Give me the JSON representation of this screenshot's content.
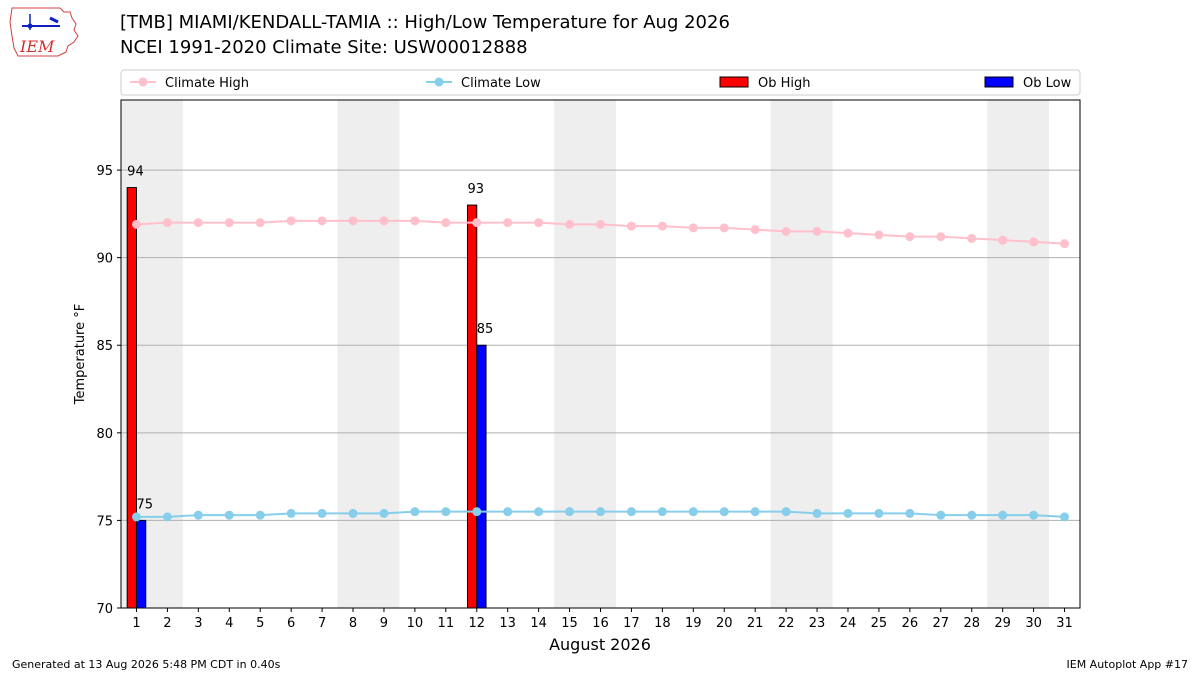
{
  "logo_text": "IEM",
  "title_line1": "[TMB] MIAMI/KENDALL-TAMIA :: High/Low Temperature for Aug 2026",
  "title_line2": "NCEI 1991-2020 Climate Site: USW00012888",
  "footer_left": "Generated at 13 Aug 2026 5:48 PM CDT in 0.40s",
  "footer_right": "IEM Autoplot App #17",
  "chart_data": {
    "type": "bar",
    "xlabel": "August 2026",
    "ylabel": "Temperature °F",
    "xlim": [
      0.5,
      31.5
    ],
    "ylim": [
      70,
      99
    ],
    "yticks": [
      70,
      75,
      80,
      85,
      90,
      95
    ],
    "categories": [
      1,
      2,
      3,
      4,
      5,
      6,
      7,
      8,
      9,
      10,
      11,
      12,
      13,
      14,
      15,
      16,
      17,
      18,
      19,
      20,
      21,
      22,
      23,
      24,
      25,
      26,
      27,
      28,
      29,
      30,
      31
    ],
    "weekend_shading": [
      [
        0.5,
        2.5
      ],
      [
        7.5,
        9.5
      ],
      [
        14.5,
        16.5
      ],
      [
        21.5,
        23.5
      ],
      [
        28.5,
        30.5
      ]
    ],
    "grid": "horizontal",
    "legend_position": "top",
    "series": [
      {
        "name": "Climate High",
        "kind": "line",
        "color": "#ffc0cb",
        "values": [
          91.9,
          92.0,
          92.0,
          92.0,
          92.0,
          92.1,
          92.1,
          92.1,
          92.1,
          92.1,
          92.0,
          92.0,
          92.0,
          92.0,
          91.9,
          91.9,
          91.8,
          91.8,
          91.7,
          91.7,
          91.6,
          91.5,
          91.5,
          91.4,
          91.3,
          91.2,
          91.2,
          91.1,
          91.0,
          90.9,
          90.8
        ]
      },
      {
        "name": "Climate Low",
        "kind": "line",
        "color": "#87ceeb",
        "values": [
          75.2,
          75.2,
          75.3,
          75.3,
          75.3,
          75.4,
          75.4,
          75.4,
          75.4,
          75.5,
          75.5,
          75.5,
          75.5,
          75.5,
          75.5,
          75.5,
          75.5,
          75.5,
          75.5,
          75.5,
          75.5,
          75.5,
          75.4,
          75.4,
          75.4,
          75.4,
          75.3,
          75.3,
          75.3,
          75.3,
          75.2
        ]
      },
      {
        "name": "Ob High",
        "kind": "bar",
        "color": "#ff0000",
        "points": [
          {
            "x": 1,
            "value": 94
          },
          {
            "x": 12,
            "value": 93
          }
        ]
      },
      {
        "name": "Ob Low",
        "kind": "bar",
        "color": "#0000ff",
        "points": [
          {
            "x": 1,
            "value": 75
          },
          {
            "x": 12,
            "value": 85
          }
        ]
      }
    ]
  }
}
